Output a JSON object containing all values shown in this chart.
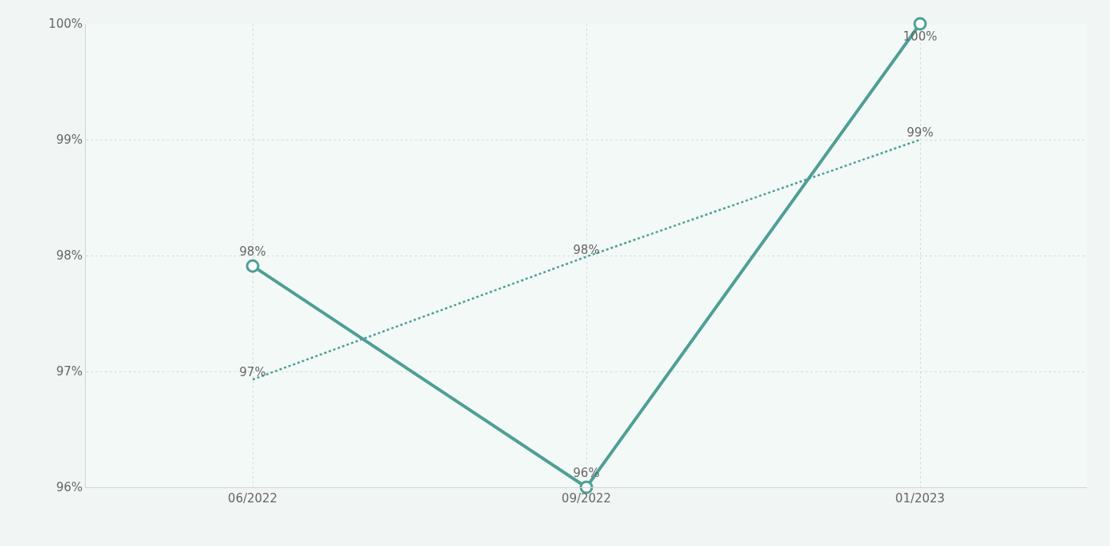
{
  "chart_data": {
    "type": "line",
    "categories": [
      "06/2022",
      "09/2022",
      "01/2023"
    ],
    "series": [
      {
        "color": "#4e9f96",
        "values": [
          97.91,
          96.0,
          100.0
        ],
        "value_labels": [
          "98%",
          "96%",
          "100%"
        ],
        "marker": "circle",
        "line_style": "solid"
      },
      {
        "color": "#4e9f96",
        "values": [
          96.93,
          97.99,
          99.0
        ],
        "value_labels": [
          "97%",
          "98%",
          "99%"
        ],
        "marker": "none",
        "line_style": "dotted"
      }
    ],
    "ylim": [
      96,
      100
    ],
    "yticks": [
      {
        "value": 96,
        "label": "96%"
      },
      {
        "value": 97,
        "label": "97%"
      },
      {
        "value": 98,
        "label": "98%"
      },
      {
        "value": 99,
        "label": "99%"
      },
      {
        "value": 100,
        "label": "100%"
      }
    ],
    "grid": true
  }
}
